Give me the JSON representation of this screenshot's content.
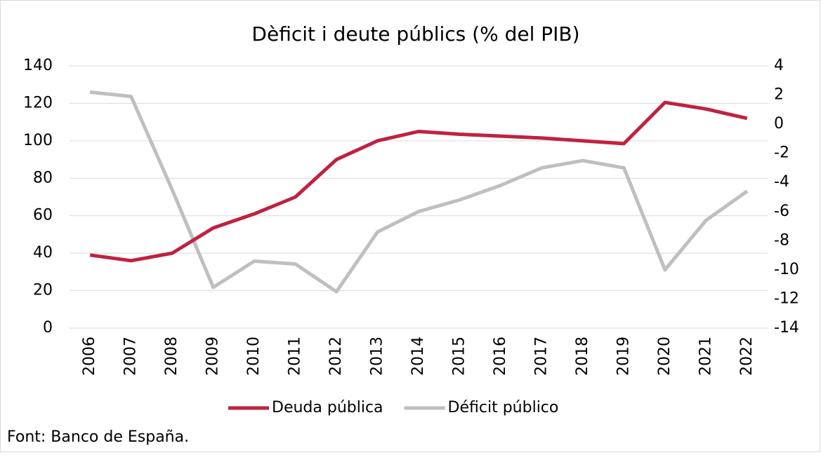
{
  "chart_data": {
    "type": "line",
    "title": "Dèficit i deute públics (% del PIB)",
    "categories": [
      "2006",
      "2007",
      "2008",
      "2009",
      "2010",
      "2011",
      "2012",
      "2013",
      "2014",
      "2015",
      "2016",
      "2017",
      "2018",
      "2019",
      "2020",
      "2021",
      "2022"
    ],
    "series": [
      {
        "name": "Deuda pública",
        "color": "#c0223f",
        "values": [
          39,
          36,
          40,
          53.5,
          61,
          70,
          90,
          100,
          105,
          103.5,
          102.5,
          101.5,
          100,
          98.5,
          120.5,
          117,
          112
        ]
      },
      {
        "name": "Déficit público",
        "color": "#bfbfbf",
        "axis": "y2",
        "values": [
          2.2,
          1.9,
          -4.5,
          -11.2,
          -9.4,
          -9.6,
          -11.5,
          -7.4,
          -6.0,
          -5.2,
          -4.2,
          -3.0,
          -2.5,
          -3.0,
          -10.0,
          -6.6,
          -4.6
        ]
      }
    ],
    "ylim": [
      0,
      140
    ],
    "yticks": [
      0,
      20,
      40,
      60,
      80,
      100,
      120,
      140
    ],
    "y2lim": [
      -14,
      4
    ],
    "y2ticks": [
      -14,
      -12,
      -10,
      -8,
      -6,
      -4,
      -2,
      0,
      2,
      4
    ],
    "grid": true,
    "legend": "bottom",
    "source": "Font: Banco de España."
  }
}
